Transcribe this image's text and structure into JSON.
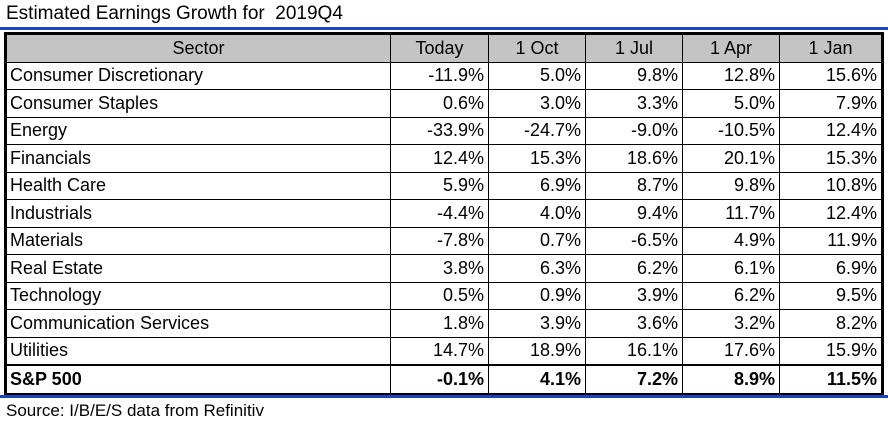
{
  "title": "Estimated Earnings Growth for  2019Q4",
  "source": "Source: I/B/E/S data from Refinitiv",
  "colors": {
    "rule": "#1f3fbf",
    "header_bg": "#c4c4c4"
  },
  "chart_data": {
    "type": "table",
    "columns": [
      "Sector",
      "Today",
      "1 Oct",
      "1 Jul",
      "1 Apr",
      "1 Jan"
    ],
    "rows": [
      [
        "Consumer Discretionary",
        "-11.9%",
        "5.0%",
        "9.8%",
        "12.8%",
        "15.6%"
      ],
      [
        "Consumer Staples",
        "0.6%",
        "3.0%",
        "3.3%",
        "5.0%",
        "7.9%"
      ],
      [
        "Energy",
        "-33.9%",
        "-24.7%",
        "-9.0%",
        "-10.5%",
        "12.4%"
      ],
      [
        "Financials",
        "12.4%",
        "15.3%",
        "18.6%",
        "20.1%",
        "15.3%"
      ],
      [
        "Health Care",
        "5.9%",
        "6.9%",
        "8.7%",
        "9.8%",
        "10.8%"
      ],
      [
        "Industrials",
        "-4.4%",
        "4.0%",
        "9.4%",
        "11.7%",
        "12.4%"
      ],
      [
        "Materials",
        "-7.8%",
        "0.7%",
        "-6.5%",
        "4.9%",
        "11.9%"
      ],
      [
        "Real Estate",
        "3.8%",
        "6.3%",
        "6.2%",
        "6.1%",
        "6.9%"
      ],
      [
        "Technology",
        "0.5%",
        "0.9%",
        "3.9%",
        "6.2%",
        "9.5%"
      ],
      [
        "Communication Services",
        "1.8%",
        "3.9%",
        "3.6%",
        "3.2%",
        "8.2%"
      ],
      [
        "Utilities",
        "14.7%",
        "18.9%",
        "16.1%",
        "17.6%",
        "15.9%"
      ],
      [
        "S&P 500",
        "-0.1%",
        "4.1%",
        "7.2%",
        "8.9%",
        "11.5%"
      ]
    ]
  }
}
